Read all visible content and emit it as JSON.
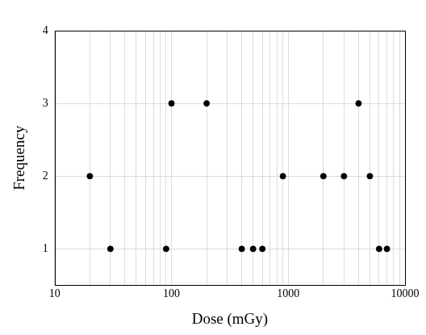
{
  "chart_data": {
    "type": "scatter",
    "x_label": "Dose (mGy)",
    "y_label": "Frequency",
    "x": [
      20,
      30,
      90,
      100,
      200,
      400,
      500,
      600,
      900,
      2000,
      3000,
      4000,
      5000,
      6000,
      7000
    ],
    "values": [
      2,
      1,
      1,
      3,
      3,
      1,
      1,
      1,
      2,
      2,
      2,
      3,
      2,
      1,
      1
    ],
    "color": "#000000",
    "marker": "circle",
    "log": "x",
    "xlim": [
      10,
      10000
    ],
    "xticks": [
      10,
      100,
      1000,
      10000
    ],
    "ylim": [
      0.5,
      4
    ],
    "yticks": [
      1,
      2,
      3,
      4
    ],
    "grid": true
  }
}
